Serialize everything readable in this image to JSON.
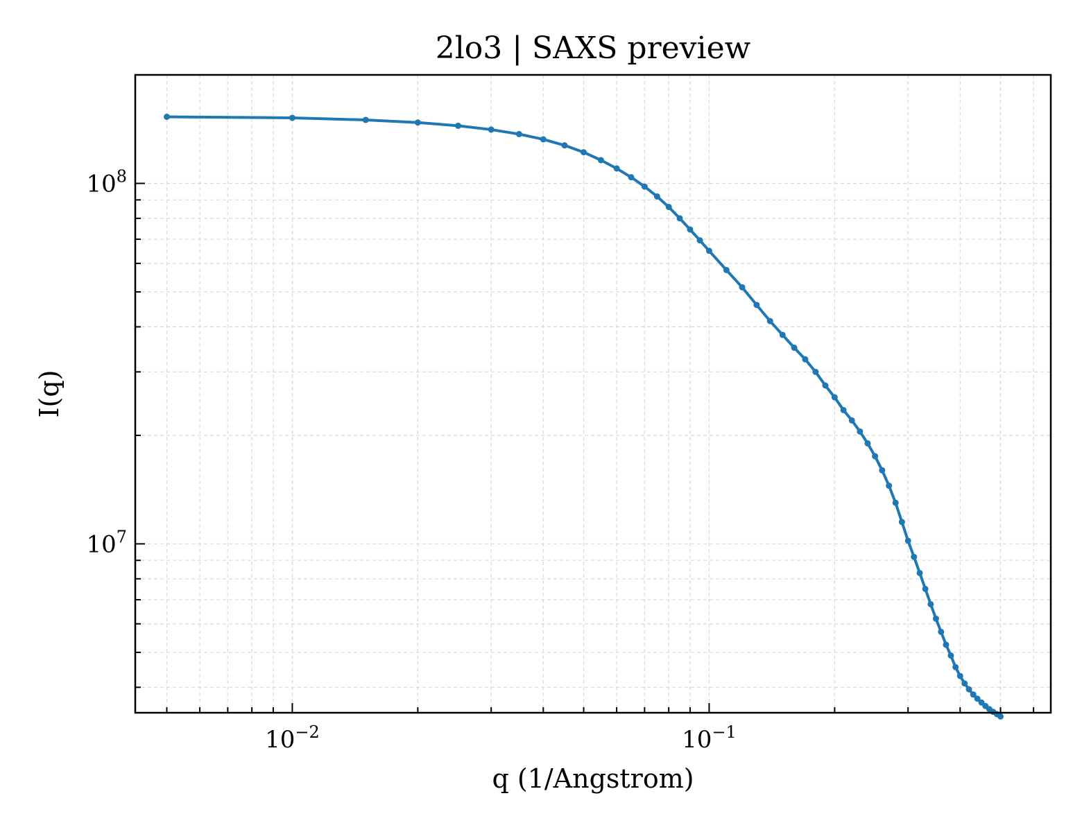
{
  "chart_data": {
    "type": "line",
    "title": "2lo3 | SAXS preview",
    "xlabel": "q (1/Angstrom)",
    "ylabel": "I(q)",
    "xscale": "log",
    "yscale": "log",
    "xlim": [
      0.0042,
      0.66
    ],
    "ylim": [
      3400000.0,
      200000000.0
    ],
    "grid": true,
    "grid_style": "dashed",
    "marker": "dot",
    "colors": {
      "line": "#1f77b4",
      "grid": "#d9d9d9",
      "axes": "#000000"
    },
    "x_ticks": [
      {
        "value": 0.01,
        "base": "10",
        "exp": "−2"
      },
      {
        "value": 0.1,
        "base": "10",
        "exp": "−1"
      }
    ],
    "y_ticks": [
      {
        "value": 10000000,
        "base": "10",
        "exp": "7"
      },
      {
        "value": 100000000,
        "base": "10",
        "exp": "8"
      }
    ],
    "series": [
      {
        "points": [
          [
            0.005,
            153000000.0
          ],
          [
            0.01,
            152000000.0
          ],
          [
            0.015,
            150000000.0
          ],
          [
            0.02,
            147500000.0
          ],
          [
            0.025,
            144500000.0
          ],
          [
            0.03,
            141000000.0
          ],
          [
            0.035,
            137000000.0
          ],
          [
            0.04,
            132500000.0
          ],
          [
            0.045,
            127500000.0
          ],
          [
            0.05,
            122000000.0
          ],
          [
            0.055,
            116000000.0
          ],
          [
            0.06,
            110000000.0
          ],
          [
            0.065,
            104000000.0
          ],
          [
            0.07,
            98000000.0
          ],
          [
            0.075,
            92000000.0
          ],
          [
            0.08,
            86000000.0
          ],
          [
            0.085,
            80000000.0
          ],
          [
            0.09,
            74500000.0
          ],
          [
            0.095,
            69500000.0
          ],
          [
            0.1,
            65000000.0
          ],
          [
            0.11,
            57500000.0
          ],
          [
            0.12,
            51500000.0
          ],
          [
            0.13,
            46000000.0
          ],
          [
            0.14,
            41500000.0
          ],
          [
            0.15,
            38000000.0
          ],
          [
            0.16,
            35000000.0
          ],
          [
            0.17,
            32500000.0
          ],
          [
            0.18,
            30000000.0
          ],
          [
            0.19,
            27500000.0
          ],
          [
            0.2,
            25500000.0
          ],
          [
            0.21,
            23500000.0
          ],
          [
            0.22,
            22000000.0
          ],
          [
            0.23,
            20500000.0
          ],
          [
            0.24,
            19000000.0
          ],
          [
            0.25,
            17500000.0
          ],
          [
            0.26,
            16000000.0
          ],
          [
            0.27,
            14500000.0
          ],
          [
            0.28,
            13000000.0
          ],
          [
            0.29,
            11500000.0
          ],
          [
            0.3,
            10200000.0
          ],
          [
            0.31,
            9200000.0
          ],
          [
            0.32,
            8300000.0
          ],
          [
            0.33,
            7500000.0
          ],
          [
            0.34,
            6800000.0
          ],
          [
            0.35,
            6200000.0
          ],
          [
            0.36,
            5700000.0
          ],
          [
            0.37,
            5250000.0
          ],
          [
            0.38,
            4900000.0
          ],
          [
            0.39,
            4550000.0
          ],
          [
            0.4,
            4300000.0
          ],
          [
            0.41,
            4100000.0
          ],
          [
            0.42,
            3950000.0
          ],
          [
            0.43,
            3820000.0
          ],
          [
            0.44,
            3720000.0
          ],
          [
            0.45,
            3630000.0
          ],
          [
            0.46,
            3550000.0
          ],
          [
            0.47,
            3480000.0
          ],
          [
            0.48,
            3420000.0
          ],
          [
            0.49,
            3370000.0
          ],
          [
            0.5,
            3320000.0
          ]
        ]
      }
    ]
  }
}
